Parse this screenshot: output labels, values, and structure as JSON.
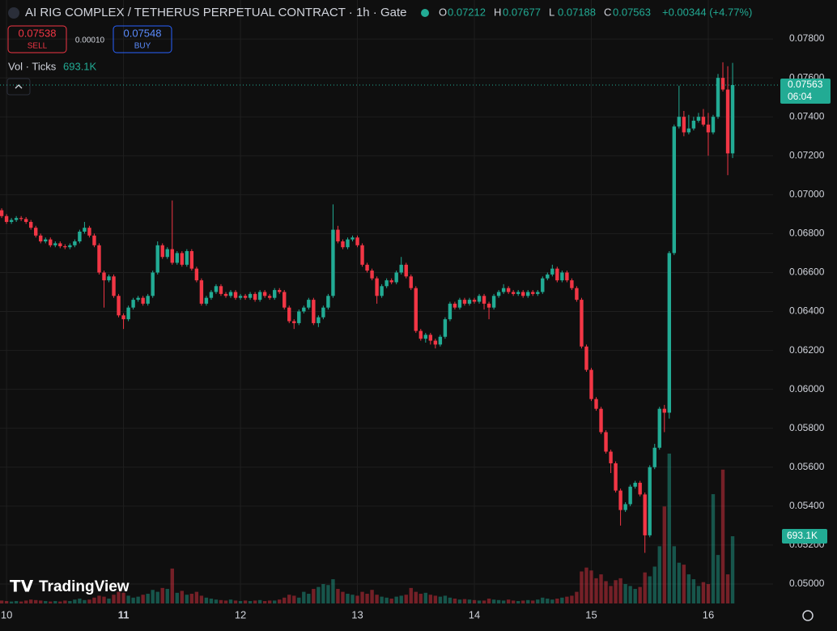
{
  "header": {
    "title": "AI RIG COMPLEX / TETHERUS PERPETUAL CONTRACT · 1h · Gate",
    "ohlc": [
      {
        "key": "O",
        "value": "0.07212"
      },
      {
        "key": "H",
        "value": "0.07677"
      },
      {
        "key": "L",
        "value": "0.07188"
      },
      {
        "key": "C",
        "value": "0.07563"
      }
    ],
    "change": "+0.00344 (+4.77%)",
    "sell_price": "0.07538",
    "sell_label": "SELL",
    "spread": "0.00010",
    "buy_price": "0.07548",
    "buy_label": "BUY",
    "vol_label": "Vol · Ticks",
    "vol_value": "693.1K"
  },
  "chart_data": {
    "type": "candlestick",
    "up_color": "#22ab94",
    "down_color": "#f23645",
    "grid": true,
    "last_price_label": "0.07563",
    "countdown": "06:04",
    "last_volume_label": "693.1K",
    "logo": "TradingView",
    "xlim": [
      9.944,
      16.554
    ],
    "xticks": [
      10,
      11,
      12,
      13,
      14,
      15,
      16
    ],
    "ylim": [
      0.049,
      0.08
    ],
    "yticks": [
      {
        "value": 0.05,
        "label": "0.05000"
      },
      {
        "value": 0.052,
        "label": "0.05200"
      },
      {
        "value": 0.054,
        "label": "0.05400"
      },
      {
        "value": 0.056,
        "label": "0.05600"
      },
      {
        "value": 0.058,
        "label": "0.05800"
      },
      {
        "value": 0.06,
        "label": "0.06000"
      },
      {
        "value": 0.062,
        "label": "0.06200"
      },
      {
        "value": 0.064,
        "label": "0.06400"
      },
      {
        "value": 0.066,
        "label": "0.06600"
      },
      {
        "value": 0.068,
        "label": "0.06800"
      },
      {
        "value": 0.07,
        "label": "0.07000"
      },
      {
        "value": 0.072,
        "label": "0.07200"
      },
      {
        "value": 0.074,
        "label": "0.07400"
      },
      {
        "value": 0.076,
        "label": "0.07600"
      },
      {
        "value": 0.078,
        "label": "0.07800"
      }
    ],
    "x": [
      9.9583,
      10,
      10.0417,
      10.0833,
      10.125,
      10.1667,
      10.2083,
      10.25,
      10.2917,
      10.3333,
      10.375,
      10.4167,
      10.4583,
      10.5,
      10.5417,
      10.5833,
      10.625,
      10.6667,
      10.7083,
      10.75,
      10.7917,
      10.8333,
      10.875,
      10.9167,
      10.9583,
      11,
      11.0417,
      11.0833,
      11.125,
      11.1667,
      11.2083,
      11.25,
      11.2917,
      11.3333,
      11.375,
      11.4167,
      11.4583,
      11.5,
      11.5417,
      11.5833,
      11.625,
      11.6667,
      11.7083,
      11.75,
      11.7917,
      11.8333,
      11.875,
      11.9167,
      11.9583,
      12,
      12.0417,
      12.0833,
      12.125,
      12.1667,
      12.2083,
      12.25,
      12.2917,
      12.3333,
      12.375,
      12.4167,
      12.4583,
      12.5,
      12.5417,
      12.5833,
      12.625,
      12.6667,
      12.7083,
      12.75,
      12.7917,
      12.8333,
      12.875,
      12.9167,
      12.9583,
      13,
      13.0417,
      13.0833,
      13.125,
      13.1667,
      13.2083,
      13.25,
      13.2917,
      13.3333,
      13.375,
      13.4167,
      13.4583,
      13.5,
      13.5417,
      13.5833,
      13.625,
      13.6667,
      13.7083,
      13.75,
      13.7917,
      13.8333,
      13.875,
      13.9167,
      13.9583,
      14,
      14.0417,
      14.0833,
      14.125,
      14.1667,
      14.2083,
      14.25,
      14.2917,
      14.3333,
      14.375,
      14.4167,
      14.4583,
      14.5,
      14.5417,
      14.5833,
      14.625,
      14.6667,
      14.7083,
      14.75,
      14.7917,
      14.8333,
      14.875,
      14.9167,
      14.9583,
      15,
      15.0417,
      15.0833,
      15.125,
      15.1667,
      15.2083,
      15.25,
      15.2917,
      15.3333,
      15.375,
      15.4167,
      15.4583,
      15.5,
      15.5417,
      15.5833,
      15.625,
      15.6667,
      15.7083,
      15.75,
      15.7917,
      15.8333,
      15.875,
      15.9167,
      15.9583,
      16,
      16.0417,
      16.0833,
      16.125,
      16.1667,
      16.2083
    ],
    "open": [
      0.0692,
      0.0689,
      0.0686,
      0.0687,
      0.0688,
      0.06875,
      0.0686,
      0.0683,
      0.0679,
      0.0676,
      0.0677,
      0.0674,
      0.0675,
      0.06735,
      0.0673,
      0.0674,
      0.0676,
      0.0681,
      0.0683,
      0.0679,
      0.0674,
      0.066,
      0.0656,
      0.0658,
      0.0648,
      0.0638,
      0.0636,
      0.0642,
      0.0646,
      0.0647,
      0.0644,
      0.0648,
      0.066,
      0.0674,
      0.0668,
      0.0672,
      0.0665,
      0.067,
      0.0664,
      0.0671,
      0.0662,
      0.0656,
      0.0644,
      0.0647,
      0.065,
      0.0653,
      0.0649,
      0.0648,
      0.065,
      0.0647,
      0.0648,
      0.0647,
      0.0649,
      0.0646,
      0.065,
      0.0648,
      0.0647,
      0.0651,
      0.065,
      0.0642,
      0.0635,
      0.0634,
      0.064,
      0.0642,
      0.0646,
      0.0634,
      0.0637,
      0.0642,
      0.0648,
      0.0682,
      0.0676,
      0.0673,
      0.0677,
      0.0678,
      0.0674,
      0.0664,
      0.0661,
      0.0657,
      0.0648,
      0.0653,
      0.0656,
      0.0655,
      0.066,
      0.0664,
      0.0658,
      0.0652,
      0.063,
      0.0626,
      0.0628,
      0.0625,
      0.0623,
      0.0627,
      0.0636,
      0.0644,
      0.0642,
      0.0646,
      0.0644,
      0.0646,
      0.0645,
      0.0648,
      0.0644,
      0.0642,
      0.0648,
      0.065,
      0.0652,
      0.065,
      0.0649,
      0.065,
      0.0648,
      0.065,
      0.0649,
      0.065,
      0.0657,
      0.0659,
      0.0662,
      0.0656,
      0.066,
      0.0656,
      0.0652,
      0.0646,
      0.0622,
      0.061,
      0.0595,
      0.059,
      0.0578,
      0.0568,
      0.0562,
      0.0548,
      0.0538,
      0.0541,
      0.055,
      0.0552,
      0.0546,
      0.0525,
      0.056,
      0.057,
      0.059,
      0.0588,
      0.067,
      0.0735,
      0.074,
      0.0732,
      0.0734,
      0.0738,
      0.074,
      0.0736,
      0.0732,
      0.074,
      0.076,
      0.0754,
      0.07212
    ],
    "high": [
      0.0693,
      0.069,
      0.0688,
      0.0689,
      0.0689,
      0.06885,
      0.0687,
      0.0684,
      0.068,
      0.0678,
      0.0678,
      0.0676,
      0.0676,
      0.06745,
      0.0675,
      0.0677,
      0.0682,
      0.0686,
      0.0684,
      0.068,
      0.0675,
      0.0661,
      0.0659,
      0.0659,
      0.0649,
      0.0639,
      0.0643,
      0.0647,
      0.0648,
      0.0648,
      0.0649,
      0.0661,
      0.0676,
      0.0675,
      0.0673,
      0.0697,
      0.0671,
      0.0671,
      0.0672,
      0.0672,
      0.0663,
      0.0657,
      0.0648,
      0.0651,
      0.0654,
      0.0654,
      0.065,
      0.0651,
      0.0651,
      0.0649,
      0.0649,
      0.065,
      0.065,
      0.0651,
      0.0651,
      0.0649,
      0.0652,
      0.0652,
      0.0651,
      0.0643,
      0.0636,
      0.0641,
      0.0643,
      0.0647,
      0.0647,
      0.0638,
      0.0643,
      0.0649,
      0.0695,
      0.0684,
      0.0677,
      0.0678,
      0.0679,
      0.0679,
      0.0675,
      0.0665,
      0.0662,
      0.0658,
      0.0654,
      0.0657,
      0.0657,
      0.0661,
      0.0668,
      0.0665,
      0.0659,
      0.0653,
      0.0631,
      0.0629,
      0.0629,
      0.0626,
      0.0628,
      0.0637,
      0.0645,
      0.0645,
      0.0647,
      0.0647,
      0.0647,
      0.0647,
      0.0649,
      0.0649,
      0.0645,
      0.0649,
      0.0651,
      0.0654,
      0.0653,
      0.0651,
      0.0651,
      0.0651,
      0.0651,
      0.0651,
      0.0651,
      0.0658,
      0.066,
      0.0664,
      0.0663,
      0.0661,
      0.0661,
      0.0657,
      0.0653,
      0.0647,
      0.0623,
      0.0611,
      0.0596,
      0.0591,
      0.0579,
      0.0569,
      0.0563,
      0.0549,
      0.0542,
      0.0551,
      0.0553,
      0.0553,
      0.0547,
      0.0561,
      0.0572,
      0.0591,
      0.0592,
      0.0671,
      0.0736,
      0.0756,
      0.0743,
      0.0741,
      0.074,
      0.0742,
      0.0744,
      0.0742,
      0.0741,
      0.0762,
      0.0768,
      0.0766,
      0.07677
    ],
    "low": [
      0.0688,
      0.0685,
      0.0685,
      0.0686,
      0.06865,
      0.0685,
      0.0682,
      0.0678,
      0.0675,
      0.0675,
      0.0673,
      0.0673,
      0.06725,
      0.0672,
      0.0672,
      0.0673,
      0.0675,
      0.068,
      0.0678,
      0.0673,
      0.0659,
      0.0642,
      0.0655,
      0.0647,
      0.0637,
      0.0631,
      0.0635,
      0.0641,
      0.0645,
      0.0643,
      0.0643,
      0.0647,
      0.0659,
      0.0667,
      0.0667,
      0.0664,
      0.0664,
      0.0663,
      0.0663,
      0.0661,
      0.0655,
      0.0643,
      0.0643,
      0.0646,
      0.0649,
      0.0648,
      0.0647,
      0.0647,
      0.0646,
      0.0646,
      0.0646,
      0.0646,
      0.0645,
      0.0645,
      0.0647,
      0.0646,
      0.0646,
      0.0649,
      0.0641,
      0.0634,
      0.0631,
      0.0633,
      0.0639,
      0.0641,
      0.0633,
      0.0632,
      0.0636,
      0.0641,
      0.0647,
      0.0675,
      0.0672,
      0.0672,
      0.0676,
      0.0673,
      0.0663,
      0.066,
      0.0656,
      0.0644,
      0.0647,
      0.0652,
      0.0654,
      0.0654,
      0.0659,
      0.0657,
      0.0651,
      0.0629,
      0.0625,
      0.0624,
      0.0623,
      0.0621,
      0.0622,
      0.0626,
      0.0635,
      0.0641,
      0.0641,
      0.0643,
      0.0643,
      0.0644,
      0.0644,
      0.0641,
      0.0636,
      0.0641,
      0.0647,
      0.0649,
      0.0649,
      0.0648,
      0.0648,
      0.0647,
      0.0647,
      0.0648,
      0.0648,
      0.0649,
      0.0656,
      0.0658,
      0.0655,
      0.0655,
      0.0655,
      0.0651,
      0.0645,
      0.0621,
      0.0609,
      0.0594,
      0.0589,
      0.0577,
      0.0567,
      0.0557,
      0.0547,
      0.053,
      0.0537,
      0.054,
      0.0549,
      0.0545,
      0.0516,
      0.0524,
      0.0559,
      0.0569,
      0.0578,
      0.0585,
      0.0669,
      0.0734,
      0.073,
      0.0731,
      0.0733,
      0.0737,
      0.0735,
      0.072,
      0.0731,
      0.0739,
      0.0753,
      0.071,
      0.07188
    ],
    "close": [
      0.0689,
      0.0686,
      0.0687,
      0.0688,
      0.06875,
      0.0686,
      0.0683,
      0.0679,
      0.0676,
      0.0677,
      0.0674,
      0.0675,
      0.06735,
      0.0673,
      0.0674,
      0.0676,
      0.0681,
      0.0683,
      0.0679,
      0.0674,
      0.066,
      0.0656,
      0.0658,
      0.0648,
      0.0638,
      0.0636,
      0.0642,
      0.0646,
      0.0647,
      0.0644,
      0.0648,
      0.066,
      0.0674,
      0.0668,
      0.0672,
      0.0665,
      0.067,
      0.0664,
      0.0671,
      0.0662,
      0.0656,
      0.0644,
      0.0647,
      0.065,
      0.0653,
      0.0649,
      0.0648,
      0.065,
      0.0647,
      0.0648,
      0.0647,
      0.0649,
      0.0646,
      0.065,
      0.0648,
      0.0647,
      0.0651,
      0.065,
      0.0642,
      0.0635,
      0.0634,
      0.064,
      0.0642,
      0.0646,
      0.0634,
      0.0637,
      0.0642,
      0.0648,
      0.0682,
      0.0676,
      0.0673,
      0.0677,
      0.0678,
      0.0674,
      0.0664,
      0.0661,
      0.0657,
      0.0648,
      0.0653,
      0.0656,
      0.0655,
      0.066,
      0.0664,
      0.0658,
      0.0652,
      0.063,
      0.0626,
      0.0628,
      0.0625,
      0.0623,
      0.0627,
      0.0636,
      0.0644,
      0.0642,
      0.0646,
      0.0644,
      0.0646,
      0.0645,
      0.0648,
      0.0644,
      0.0642,
      0.0648,
      0.065,
      0.0652,
      0.065,
      0.0649,
      0.065,
      0.0648,
      0.065,
      0.0649,
      0.065,
      0.0657,
      0.0659,
      0.0662,
      0.0656,
      0.066,
      0.0656,
      0.0652,
      0.0646,
      0.0622,
      0.061,
      0.0595,
      0.059,
      0.0578,
      0.0568,
      0.0562,
      0.0548,
      0.0538,
      0.0541,
      0.055,
      0.0552,
      0.0546,
      0.0525,
      0.056,
      0.057,
      0.059,
      0.0588,
      0.067,
      0.0735,
      0.074,
      0.0732,
      0.0734,
      0.0738,
      0.074,
      0.0736,
      0.0732,
      0.074,
      0.076,
      0.0754,
      0.07212,
      0.07563
    ],
    "volume": [
      30,
      25,
      20,
      25,
      20,
      30,
      40,
      35,
      30,
      25,
      20,
      25,
      20,
      30,
      25,
      40,
      50,
      35,
      40,
      60,
      80,
      70,
      50,
      90,
      120,
      110,
      80,
      60,
      70,
      90,
      100,
      140,
      120,
      160,
      150,
      360,
      110,
      130,
      90,
      100,
      120,
      80,
      60,
      50,
      40,
      35,
      30,
      40,
      30,
      25,
      30,
      25,
      30,
      35,
      25,
      30,
      30,
      40,
      60,
      90,
      80,
      60,
      120,
      100,
      150,
      170,
      200,
      190,
      250,
      150,
      120,
      100,
      90,
      80,
      120,
      100,
      140,
      90,
      70,
      60,
      50,
      70,
      80,
      90,
      160,
      120,
      100,
      110,
      90,
      80,
      70,
      80,
      60,
      50,
      40,
      45,
      40,
      35,
      30,
      30,
      50,
      40,
      35,
      30,
      40,
      30,
      25,
      30,
      35,
      30,
      40,
      60,
      50,
      40,
      50,
      60,
      70,
      80,
      120,
      330,
      370,
      340,
      260,
      300,
      230,
      180,
      240,
      260,
      200,
      180,
      150,
      170,
      320,
      280,
      380,
      590,
      1000,
      1545,
      590,
      420,
      400,
      300,
      250,
      180,
      220,
      200,
      1127,
      500,
      1380,
      300,
      693.1
    ]
  }
}
